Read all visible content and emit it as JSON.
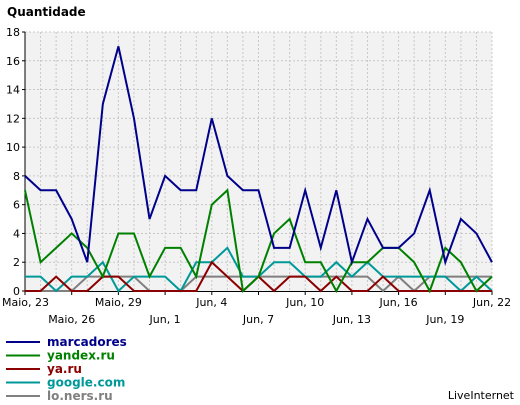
{
  "chart_data": {
    "type": "line",
    "title": "Quantidade",
    "ylabel": "",
    "xlabel": "",
    "ylim": [
      0,
      18
    ],
    "yticks": [
      0,
      2,
      4,
      6,
      8,
      10,
      12,
      14,
      16,
      18
    ],
    "grid": true,
    "x_count": 31,
    "x_ticks_row1": [
      {
        "index": 0,
        "label": "Maio, 23"
      },
      {
        "index": 6,
        "label": "Maio, 29"
      },
      {
        "index": 12,
        "label": "Jun, 4"
      },
      {
        "index": 18,
        "label": "Jun, 10"
      },
      {
        "index": 24,
        "label": "Jun, 16"
      },
      {
        "index": 30,
        "label": "Jun, 22"
      }
    ],
    "x_ticks_row2": [
      {
        "index": 3,
        "label": "Maio, 26"
      },
      {
        "index": 9,
        "label": "Jun, 1"
      },
      {
        "index": 15,
        "label": "Jun, 7"
      },
      {
        "index": 21,
        "label": "Jun, 13"
      },
      {
        "index": 27,
        "label": "Jun, 19"
      }
    ],
    "series": [
      {
        "name": "marcadores",
        "color": "#00008b",
        "values": [
          8,
          7,
          7,
          5,
          2,
          13,
          17,
          12,
          5,
          8,
          7,
          7,
          12,
          8,
          7,
          7,
          3,
          3,
          7,
          3,
          7,
          2,
          5,
          3,
          3,
          4,
          7,
          2,
          5,
          4,
          2
        ]
      },
      {
        "name": "yandex.ru",
        "color": "#008000",
        "values": [
          7,
          2,
          3,
          4,
          3,
          1,
          4,
          4,
          1,
          3,
          3,
          1,
          6,
          7,
          0,
          1,
          4,
          5,
          2,
          2,
          0,
          2,
          2,
          3,
          3,
          2,
          0,
          3,
          2,
          0,
          1
        ]
      },
      {
        "name": "ya.ru",
        "color": "#8b0000",
        "values": [
          0,
          0,
          1,
          0,
          0,
          1,
          1,
          0,
          0,
          0,
          0,
          0,
          2,
          1,
          0,
          1,
          0,
          1,
          1,
          0,
          1,
          0,
          0,
          1,
          0,
          0,
          0,
          0,
          0,
          0,
          0
        ]
      },
      {
        "name": "google.com",
        "color": "#009999",
        "values": [
          1,
          1,
          0,
          1,
          1,
          2,
          0,
          1,
          1,
          1,
          0,
          2,
          2,
          3,
          1,
          1,
          2,
          2,
          1,
          1,
          2,
          1,
          2,
          1,
          1,
          1,
          1,
          1,
          0,
          1,
          0
        ]
      },
      {
        "name": "lo.ners.ru",
        "color": "#808080",
        "values": [
          0,
          0,
          0,
          0,
          1,
          1,
          1,
          1,
          0,
          0,
          0,
          1,
          1,
          1,
          1,
          1,
          1,
          1,
          1,
          1,
          1,
          1,
          1,
          0,
          1,
          0,
          1,
          1,
          1,
          1,
          1
        ]
      }
    ]
  },
  "watermark": "LiveInternet"
}
